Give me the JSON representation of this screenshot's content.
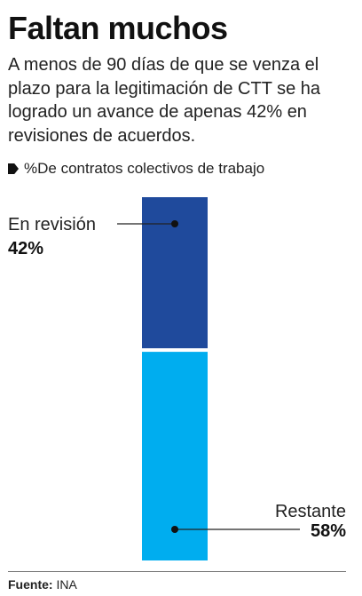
{
  "title": "Faltan muchos",
  "subtitle": "A menos de 90 días de que se venza el plazo para la legitimación de CTT se ha logrado un avance de apenas 42% en revisiones de acuerdos.",
  "chart_label": "%De contratos colectivos de trabajo",
  "source": {
    "label": "Fuente:",
    "value": "INA"
  },
  "colors": {
    "en_revision": "#1f4a9c",
    "restante": "#00adef"
  },
  "chart_data": {
    "type": "bar",
    "stacked": true,
    "orientation": "vertical",
    "unit": "%",
    "title": "%De contratos colectivos de trabajo",
    "series": [
      {
        "name": "En revisión",
        "value": 42,
        "label": "42%",
        "color": "#1f4a9c"
      },
      {
        "name": "Restante",
        "value": 58,
        "label": "58%",
        "color": "#00adef"
      }
    ],
    "total": 100
  }
}
